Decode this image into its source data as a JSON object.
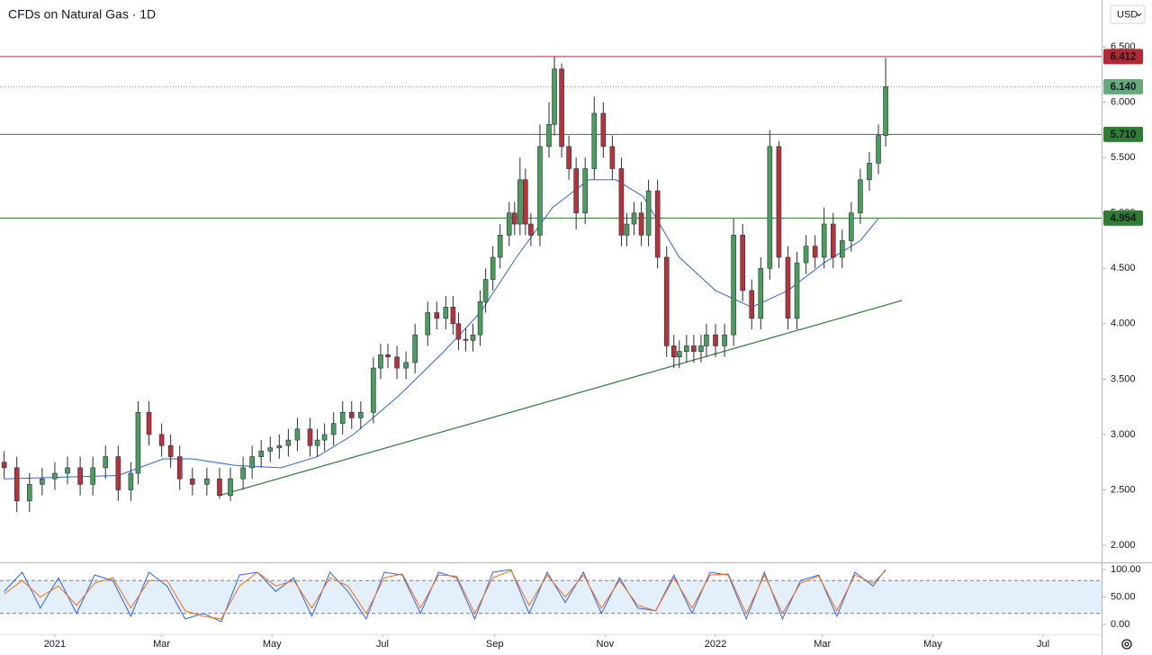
{
  "chart_data": [
    {
      "type": "candlestick",
      "title": "CFDs on Natural Gas · 1D",
      "currency": "USD",
      "xlim": [
        -30.3,
        578.3
      ],
      "ylim": [
        1.846,
        6.923
      ],
      "xticks": [
        {
          "value": 0,
          "label": "2021"
        },
        {
          "value": 59,
          "label": "Mar"
        },
        {
          "value": 120,
          "label": "May"
        },
        {
          "value": 181,
          "label": "Jul"
        },
        {
          "value": 243,
          "label": "Sep"
        },
        {
          "value": 304,
          "label": "Nov"
        },
        {
          "value": 365,
          "label": "2022"
        },
        {
          "value": 424,
          "label": "Mar"
        },
        {
          "value": 485,
          "label": "May"
        },
        {
          "value": 546,
          "label": "Jul"
        }
      ],
      "yticks": [
        {
          "value": 2,
          "label": "2.000"
        },
        {
          "value": 2.5,
          "label": "2.500"
        },
        {
          "value": 3,
          "label": "3.000"
        },
        {
          "value": 3.5,
          "label": "3.500"
        },
        {
          "value": 4,
          "label": "4.000"
        },
        {
          "value": 4.5,
          "label": "4.500"
        },
        {
          "value": 5,
          "label": "5.000"
        },
        {
          "value": 5.5,
          "label": "5.500"
        },
        {
          "value": 6,
          "label": "6.000"
        },
        {
          "value": 6.5,
          "label": "6.500"
        }
      ],
      "grid": false,
      "up_color": "#4a9e5c",
      "down_color": "#b8323a",
      "x": [
        -28,
        -21,
        -14,
        -7,
        0,
        7,
        14,
        21,
        28,
        35,
        42,
        46,
        52,
        59,
        64,
        69,
        76,
        84,
        91,
        97,
        104,
        109,
        114,
        119,
        124,
        129,
        134,
        141,
        145,
        149,
        154,
        159,
        164,
        169,
        176,
        180,
        184,
        189,
        194,
        199,
        206,
        211,
        216,
        220,
        223,
        227,
        231,
        235,
        238,
        242,
        246,
        251,
        254,
        257,
        260,
        263,
        268,
        273,
        276,
        280,
        284,
        288,
        293,
        298,
        303,
        308,
        313,
        316,
        320,
        324,
        328,
        333,
        338,
        342,
        345,
        349,
        353,
        357,
        360,
        365,
        370,
        375,
        380,
        385,
        390,
        395,
        400,
        405,
        410,
        415,
        420,
        425,
        430,
        435,
        440,
        445,
        450,
        455,
        459
      ],
      "open": [
        2.75,
        2.7,
        2.4,
        2.55,
        2.6,
        2.65,
        2.7,
        2.55,
        2.7,
        2.8,
        2.5,
        2.65,
        3.2,
        3.0,
        2.9,
        2.8,
        2.6,
        2.55,
        2.6,
        2.45,
        2.6,
        2.7,
        2.8,
        2.85,
        2.88,
        2.9,
        2.95,
        3.05,
        2.9,
        2.95,
        3.0,
        3.1,
        3.2,
        3.15,
        3.2,
        3.6,
        3.72,
        3.7,
        3.6,
        3.65,
        3.9,
        4.1,
        4.05,
        4.15,
        4.0,
        3.86,
        3.85,
        3.9,
        4.2,
        4.4,
        4.6,
        4.8,
        5.0,
        4.9,
        5.3,
        4.9,
        4.8,
        5.6,
        5.8,
        6.3,
        5.6,
        5.4,
        5.0,
        5.4,
        5.9,
        5.6,
        5.4,
        4.8,
        4.9,
        5.0,
        4.8,
        5.2,
        4.6,
        3.8,
        3.7,
        3.75,
        3.8,
        3.75,
        3.8,
        3.9,
        3.8,
        3.9,
        4.8,
        4.3,
        4.05,
        4.5,
        5.6,
        4.6,
        4.05,
        4.55,
        4.7,
        4.6,
        4.9,
        4.6,
        4.75,
        5.0,
        5.3,
        5.45,
        5.7
      ],
      "high": [
        2.85,
        2.8,
        2.65,
        2.7,
        2.75,
        2.8,
        2.8,
        2.8,
        2.9,
        2.9,
        2.75,
        3.3,
        3.3,
        3.1,
        3.0,
        2.9,
        2.7,
        2.7,
        2.7,
        2.7,
        2.8,
        2.9,
        2.95,
        2.98,
        3.0,
        3.05,
        3.15,
        3.15,
        3.05,
        3.1,
        3.2,
        3.3,
        3.3,
        3.3,
        3.7,
        3.82,
        3.82,
        3.8,
        3.75,
        4.0,
        4.2,
        4.2,
        4.25,
        4.25,
        4.1,
        3.96,
        4.0,
        4.3,
        4.5,
        4.7,
        4.9,
        5.1,
        5.1,
        5.5,
        5.4,
        5.0,
        5.8,
        6.0,
        6.412,
        6.35,
        5.7,
        5.5,
        5.5,
        6.05,
        6.0,
        5.7,
        5.5,
        5.0,
        5.1,
        5.1,
        5.3,
        5.3,
        4.7,
        3.9,
        3.85,
        3.9,
        3.9,
        3.9,
        4.0,
        4.0,
        4.0,
        4.95,
        4.9,
        4.4,
        4.6,
        5.75,
        5.65,
        4.7,
        4.65,
        4.8,
        4.8,
        5.05,
        5.0,
        4.85,
        5.1,
        5.4,
        5.55,
        5.8,
        6.4
      ],
      "low": [
        2.6,
        2.3,
        2.3,
        2.45,
        2.5,
        2.55,
        2.45,
        2.45,
        2.6,
        2.4,
        2.4,
        2.55,
        2.9,
        2.8,
        2.7,
        2.5,
        2.45,
        2.45,
        2.42,
        2.4,
        2.5,
        2.6,
        2.7,
        2.75,
        2.78,
        2.8,
        2.85,
        2.8,
        2.8,
        2.85,
        2.9,
        3.0,
        3.05,
        3.05,
        3.1,
        3.5,
        3.6,
        3.5,
        3.5,
        3.55,
        3.8,
        3.95,
        3.95,
        3.9,
        3.76,
        3.75,
        3.75,
        3.8,
        4.1,
        4.3,
        4.5,
        4.7,
        4.8,
        4.8,
        4.8,
        4.7,
        4.7,
        5.5,
        5.7,
        5.5,
        5.3,
        4.85,
        4.9,
        5.3,
        5.5,
        5.3,
        4.7,
        4.7,
        4.8,
        4.7,
        4.7,
        4.5,
        3.7,
        3.6,
        3.6,
        3.65,
        3.65,
        3.65,
        3.7,
        3.7,
        3.7,
        3.8,
        4.2,
        3.95,
        3.95,
        4.4,
        4.5,
        3.95,
        3.95,
        4.45,
        4.5,
        4.5,
        4.5,
        4.5,
        4.65,
        4.9,
        5.2,
        5.35,
        5.6
      ],
      "close": [
        2.7,
        2.4,
        2.55,
        2.6,
        2.65,
        2.7,
        2.55,
        2.7,
        2.8,
        2.5,
        2.65,
        3.2,
        3.0,
        2.9,
        2.8,
        2.6,
        2.55,
        2.6,
        2.45,
        2.6,
        2.7,
        2.8,
        2.85,
        2.88,
        2.9,
        2.95,
        3.05,
        2.9,
        2.95,
        3.0,
        3.1,
        3.2,
        3.15,
        3.2,
        3.6,
        3.72,
        3.7,
        3.6,
        3.65,
        3.9,
        4.1,
        4.05,
        4.15,
        4.0,
        3.86,
        3.85,
        3.9,
        4.2,
        4.4,
        4.6,
        4.8,
        5.0,
        4.9,
        5.3,
        4.9,
        4.8,
        5.6,
        5.8,
        6.3,
        5.6,
        5.4,
        5.0,
        5.4,
        5.9,
        5.6,
        5.4,
        4.8,
        4.9,
        5.0,
        4.8,
        5.2,
        4.6,
        3.8,
        3.7,
        3.75,
        3.8,
        3.75,
        3.8,
        3.9,
        3.8,
        3.9,
        4.8,
        4.3,
        4.05,
        4.5,
        5.6,
        4.6,
        4.05,
        4.55,
        4.7,
        4.6,
        4.9,
        4.6,
        4.75,
        5.0,
        5.3,
        5.45,
        5.7,
        6.14
      ],
      "ma": {
        "color": "#2962ff",
        "x": [
          -28,
          14,
          35,
          60,
          76,
          100,
          125,
          145,
          165,
          190,
          215,
          235,
          255,
          275,
          295,
          310,
          325,
          345,
          365,
          385,
          405,
          425,
          445,
          455
        ],
        "values": [
          2.6,
          2.62,
          2.63,
          2.78,
          2.78,
          2.72,
          2.7,
          2.8,
          3.0,
          3.35,
          3.75,
          4.1,
          4.6,
          5.05,
          5.3,
          5.3,
          5.15,
          4.6,
          4.3,
          4.15,
          4.3,
          4.55,
          4.75,
          4.95
        ]
      },
      "trendline": {
        "color": "#2e7d32",
        "x": [
          91,
          468
        ],
        "values": [
          2.45,
          4.21
        ]
      },
      "levels": {
        "values": [
          6.412,
          5.71,
          4.954
        ],
        "value_labels": [
          "6.412",
          "5.710",
          "4.954"
        ],
        "colors": [
          "#b22833",
          "#2e7d32",
          "#2e7d32"
        ]
      },
      "last_price": {
        "value": 6.14,
        "label": "6.140",
        "color": "#66a97a"
      }
    },
    {
      "type": "stochastic",
      "xlim": [
        -30.3,
        578.3
      ],
      "ylim": [
        -18,
        109.8
      ],
      "yticks": [
        {
          "value": 0,
          "label": "0.00"
        },
        {
          "value": 50,
          "label": "50.00"
        },
        {
          "value": 100,
          "label": "100.00"
        }
      ],
      "band": [
        20,
        80
      ],
      "band_color": "#e3f0fc",
      "x": [
        -28,
        -18,
        -8,
        2,
        12,
        22,
        32,
        42,
        52,
        62,
        72,
        82,
        92,
        102,
        112,
        122,
        132,
        142,
        152,
        162,
        172,
        182,
        192,
        202,
        212,
        222,
        232,
        242,
        252,
        262,
        272,
        282,
        292,
        302,
        312,
        322,
        332,
        342,
        352,
        362,
        372,
        382,
        392,
        402,
        412,
        422,
        432,
        442,
        452,
        459
      ],
      "series": [
        {
          "color": "#2962ff",
          "values": [
            60,
            95,
            30,
            85,
            20,
            90,
            80,
            15,
            95,
            70,
            10,
            20,
            5,
            90,
            95,
            60,
            85,
            15,
            95,
            60,
            10,
            95,
            90,
            20,
            95,
            85,
            10,
            95,
            100,
            20,
            95,
            40,
            95,
            20,
            85,
            30,
            25,
            90,
            20,
            95,
            90,
            10,
            95,
            10,
            80,
            90,
            15,
            95,
            70,
            100
          ]
        },
        {
          "color": "#ff6d00",
          "values": [
            55,
            80,
            50,
            70,
            35,
            75,
            85,
            30,
            80,
            80,
            25,
            15,
            10,
            70,
            95,
            70,
            80,
            30,
            85,
            70,
            20,
            85,
            92,
            30,
            90,
            88,
            20,
            85,
            98,
            35,
            90,
            50,
            90,
            30,
            80,
            35,
            25,
            85,
            30,
            90,
            92,
            20,
            90,
            20,
            75,
            88,
            25,
            90,
            75,
            98
          ]
        }
      ]
    }
  ]
}
